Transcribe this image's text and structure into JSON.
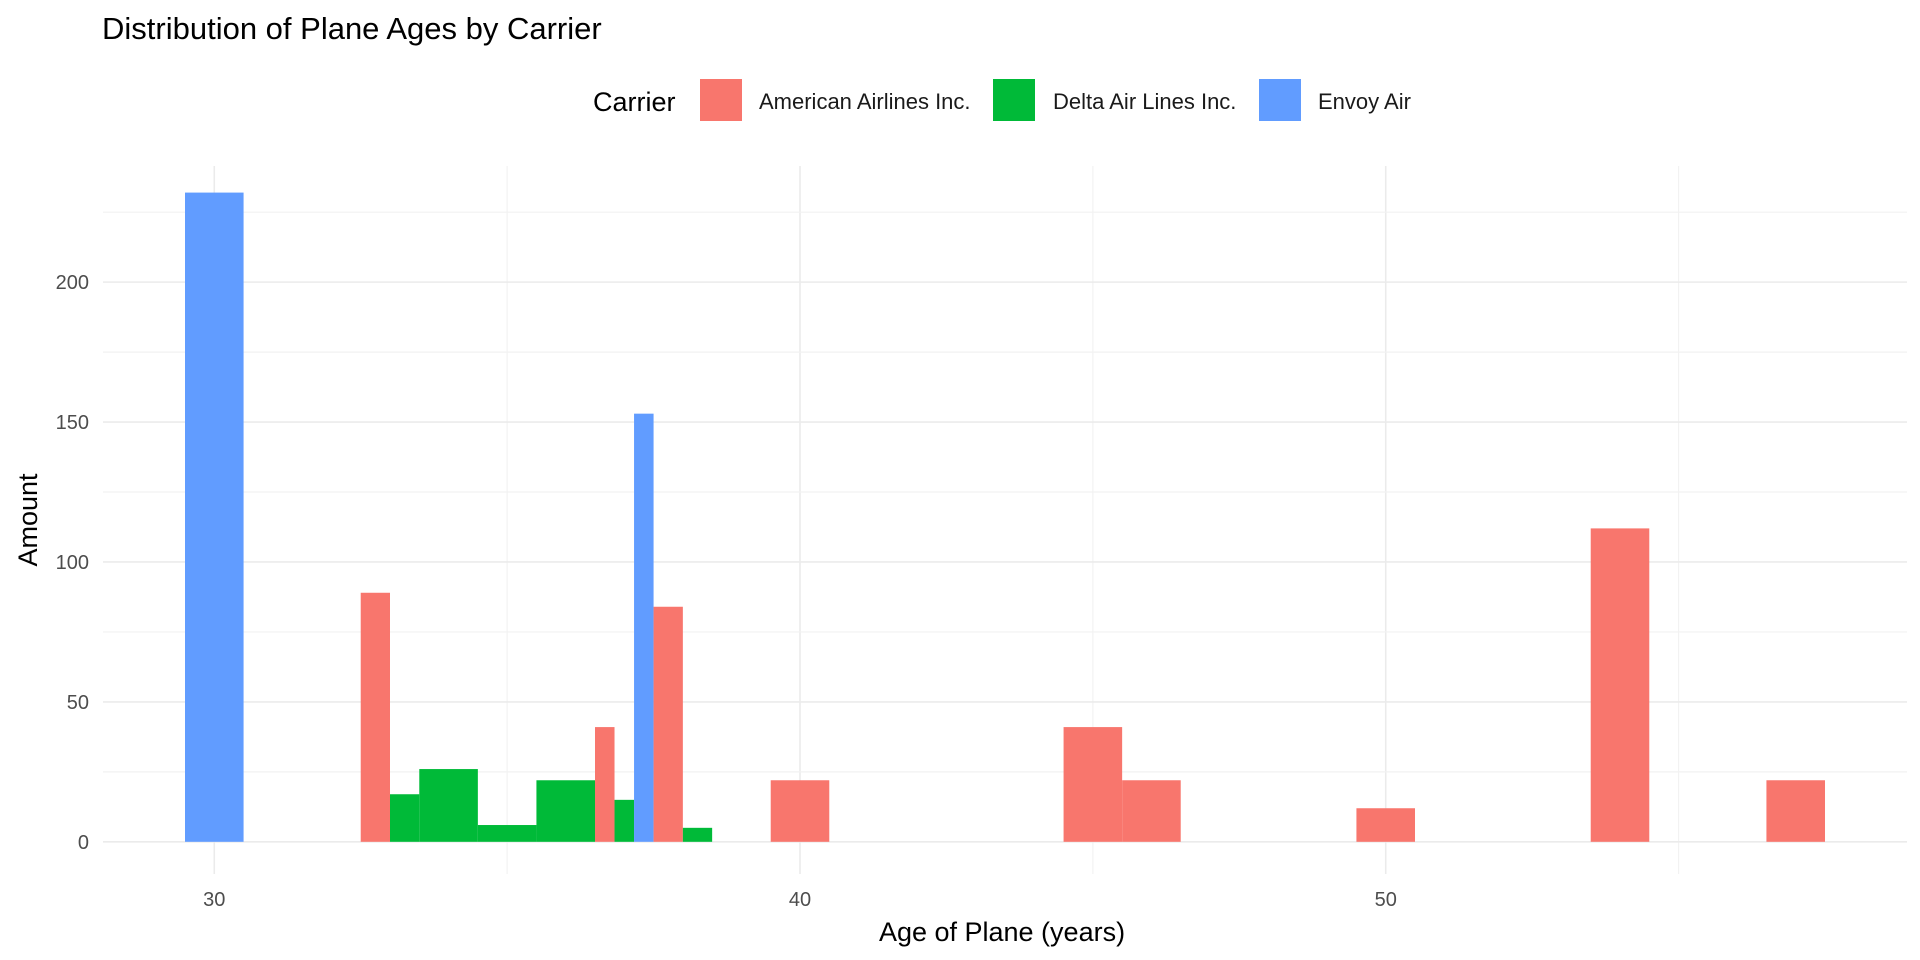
{
  "chart_data": {
    "type": "bar",
    "title": "Distribution of Plane Ages by Carrier",
    "xlabel": "Age of Plane (years)",
    "ylabel": "Amount",
    "xlim": [
      28.1,
      58.9
    ],
    "ylim": [
      -11.5,
      241.5
    ],
    "x_ticks": [
      30,
      40,
      50
    ],
    "y_ticks": [
      0,
      50,
      100,
      150,
      200
    ],
    "bin_width": 1,
    "grid": true,
    "legend": {
      "title": "Carrier",
      "position": "top"
    },
    "series": [
      {
        "name": "American Airlines Inc.",
        "color": "#F8766D",
        "points": [
          {
            "x": 33,
            "y": 89
          },
          {
            "x": 37,
            "y": 41
          },
          {
            "x": 38,
            "y": 84
          },
          {
            "x": 40,
            "y": 22
          },
          {
            "x": 45,
            "y": 41
          },
          {
            "x": 46,
            "y": 22
          },
          {
            "x": 50,
            "y": 12
          },
          {
            "x": 54,
            "y": 112
          },
          {
            "x": 57,
            "y": 22
          }
        ]
      },
      {
        "name": "Delta Air Lines Inc.",
        "color": "#00BA38",
        "points": [
          {
            "x": 33,
            "y": 17
          },
          {
            "x": 34,
            "y": 26
          },
          {
            "x": 35,
            "y": 6
          },
          {
            "x": 36,
            "y": 22
          },
          {
            "x": 37,
            "y": 15
          },
          {
            "x": 38,
            "y": 5
          }
        ]
      },
      {
        "name": "Envoy Air",
        "color": "#619CFF",
        "points": [
          {
            "x": 30,
            "y": 232
          },
          {
            "x": 37,
            "y": 153
          }
        ]
      }
    ]
  }
}
